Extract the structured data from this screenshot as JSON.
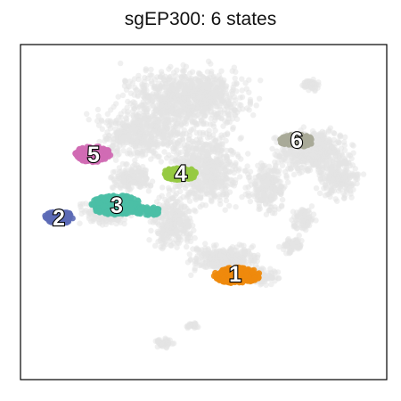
{
  "title": "sgEP300: 6 states",
  "colors": {
    "background_cells": "#e3e3e3",
    "axes_frame": "#000000"
  },
  "chart_data": {
    "type": "scatter",
    "title": "sgEP300: 6 states",
    "xlabel": "",
    "ylabel": "",
    "grid": false,
    "axes_ticks": false,
    "legend": "none",
    "background_population": "light grey UMAP-style embedding of all cells",
    "states": [
      {
        "label": "1",
        "color": "#ee8a0c"
      },
      {
        "label": "2",
        "color": "#5c6ab6"
      },
      {
        "label": "3",
        "color": "#4bbfa6"
      },
      {
        "label": "4",
        "color": "#96ca42"
      },
      {
        "label": "5",
        "color": "#d06cb4"
      },
      {
        "label": "6",
        "color": "#a9aa98"
      }
    ]
  }
}
